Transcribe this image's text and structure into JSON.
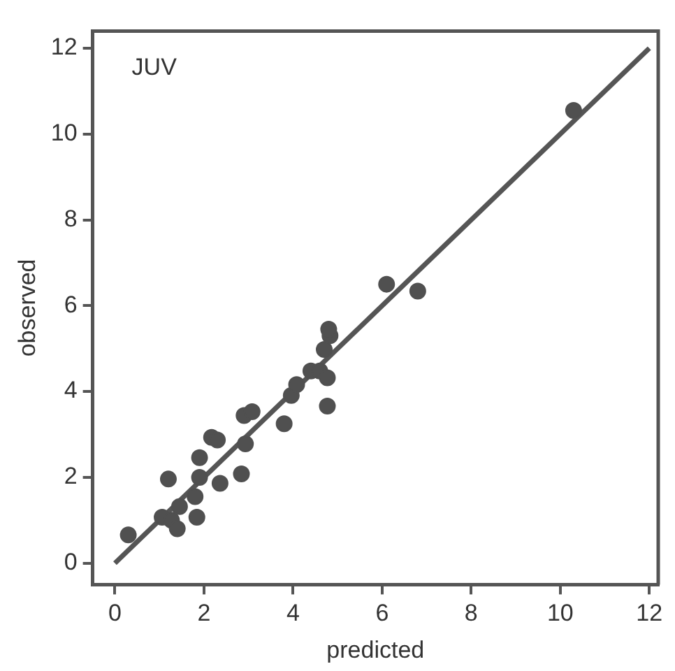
{
  "chart_data": {
    "type": "scatter",
    "xlabel": "predicted",
    "ylabel": "observed",
    "annotations": [
      "JUV"
    ],
    "xlim": [
      -0.5,
      12.2
    ],
    "ylim": [
      -0.5,
      12.4
    ],
    "xticks": [
      0,
      2,
      4,
      6,
      8,
      10,
      12
    ],
    "yticks": [
      0,
      2,
      4,
      6,
      8,
      10,
      12
    ],
    "grid": false,
    "legend": false,
    "marker": "circle",
    "series": [
      {
        "color": "#505050",
        "x": [
          0.3,
          1.06,
          1.2,
          1.27,
          1.4,
          1.45,
          1.8,
          1.84,
          1.9,
          1.9,
          2.17,
          2.3,
          2.36,
          2.84,
          2.93,
          2.9,
          3.08,
          3.8,
          3.96,
          4.08,
          4.4,
          4.6,
          4.7,
          4.77,
          4.77,
          4.83,
          4.8,
          6.1,
          6.8,
          10.3
        ],
        "values": [
          0.66,
          1.07,
          1.96,
          1.0,
          0.8,
          1.32,
          1.55,
          1.07,
          2.0,
          2.46,
          2.93,
          2.87,
          1.86,
          2.08,
          2.78,
          3.44,
          3.53,
          3.25,
          3.91,
          4.16,
          4.48,
          4.48,
          4.98,
          4.32,
          3.66,
          5.3,
          5.45,
          6.5,
          6.34,
          10.55
        ]
      },
      {
        "type": "line",
        "color": "#555555",
        "x": [
          0,
          12
        ],
        "values": [
          0,
          12
        ],
        "marker": "none",
        "line_style": "solid"
      }
    ]
  }
}
